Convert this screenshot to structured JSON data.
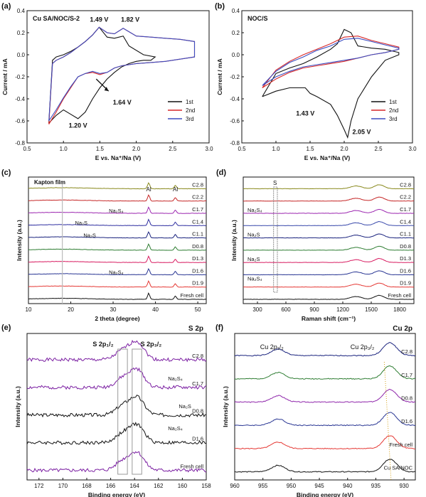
{
  "chart_data": [
    {
      "id": "a",
      "type": "line",
      "panel_label": "(a)",
      "title": "Cu SA/NOC/S-2",
      "xlabel": "E vs. Na⁺/Na (V)",
      "ylabel": "Current / mA",
      "xlim": [
        0.5,
        3.0
      ],
      "ylim": [
        -0.8,
        0.4
      ],
      "xticks": [
        "0.5",
        "1.0",
        "1.5",
        "2.0",
        "2.5",
        "3.0"
      ],
      "yticks": [
        "-0.8",
        "-0.6",
        "-0.4",
        "-0.2",
        "0.0",
        "0.2",
        "0.4"
      ],
      "legend": {
        "position": "bottom-right"
      },
      "annotations": [
        "1.49 V",
        "1.82 V",
        "1.64 V",
        "1.20 V"
      ],
      "series": [
        {
          "name": "1st",
          "color": "#111111",
          "x": [
            0.8,
            0.9,
            1.0,
            1.1,
            1.2,
            1.3,
            1.4,
            1.5,
            1.6,
            1.7,
            1.8,
            1.9,
            2.0,
            2.1,
            2.2,
            2.26,
            2.1,
            1.9,
            1.82,
            1.7,
            1.6,
            1.49,
            1.4,
            1.3,
            1.2,
            1.1,
            1.0,
            0.9,
            0.85,
            0.8
          ],
          "y": [
            -0.62,
            -0.55,
            -0.5,
            -0.54,
            -0.58,
            -0.52,
            -0.4,
            -0.3,
            -0.22,
            -0.16,
            -0.11,
            -0.08,
            -0.06,
            -0.05,
            -0.05,
            -0.02,
            0.0,
            0.08,
            0.17,
            0.15,
            0.16,
            0.25,
            0.18,
            0.12,
            0.07,
            0.03,
            0.0,
            -0.02,
            -0.05,
            -0.62
          ]
        },
        {
          "name": "2nd",
          "color": "#d62728",
          "x": [
            0.8,
            0.9,
            1.0,
            1.1,
            1.2,
            1.3,
            1.4,
            1.5,
            1.6,
            1.7,
            1.8,
            2.0,
            2.2,
            2.4,
            2.6,
            2.8,
            2.8,
            2.6,
            2.4,
            2.2,
            2.0,
            1.82,
            1.7,
            1.6,
            1.49,
            1.4,
            1.3,
            1.2,
            1.1,
            1.0,
            0.9,
            0.85,
            0.8
          ],
          "y": [
            -0.63,
            -0.52,
            -0.4,
            -0.3,
            -0.2,
            -0.17,
            -0.16,
            -0.18,
            -0.16,
            -0.12,
            -0.1,
            -0.08,
            -0.07,
            -0.06,
            -0.04,
            -0.02,
            0.12,
            0.14,
            0.15,
            0.16,
            0.17,
            0.24,
            0.19,
            0.2,
            0.25,
            0.18,
            0.12,
            0.07,
            0.02,
            -0.02,
            -0.05,
            -0.08,
            -0.63
          ]
        },
        {
          "name": "3rd",
          "color": "#3b4cc0",
          "x": [
            0.8,
            0.9,
            1.0,
            1.1,
            1.2,
            1.3,
            1.4,
            1.5,
            1.6,
            1.7,
            1.8,
            2.0,
            2.2,
            2.4,
            2.6,
            2.8,
            2.8,
            2.6,
            2.4,
            2.2,
            2.0,
            1.82,
            1.7,
            1.6,
            1.49,
            1.4,
            1.3,
            1.2,
            1.1,
            1.0,
            0.9,
            0.85,
            0.8
          ],
          "y": [
            -0.6,
            -0.5,
            -0.39,
            -0.29,
            -0.2,
            -0.17,
            -0.15,
            -0.17,
            -0.16,
            -0.12,
            -0.1,
            -0.08,
            -0.07,
            -0.06,
            -0.04,
            -0.02,
            0.12,
            0.14,
            0.15,
            0.16,
            0.17,
            0.24,
            0.19,
            0.2,
            0.25,
            0.18,
            0.12,
            0.07,
            0.02,
            -0.02,
            -0.05,
            -0.08,
            -0.6
          ]
        }
      ]
    },
    {
      "id": "b",
      "type": "line",
      "panel_label": "(b)",
      "title": "NOC/S",
      "xlabel": "E vs. Na⁺/Na (V)",
      "ylabel": "Current / mA",
      "xlim": [
        0.5,
        3.0
      ],
      "ylim": [
        -0.8,
        0.4
      ],
      "xticks": [
        "0.5",
        "1.0",
        "1.5",
        "2.0",
        "2.5",
        "3.0"
      ],
      "yticks": [
        "-0.8",
        "-0.6",
        "-0.4",
        "-0.2",
        "0.0",
        "0.2",
        "0.4"
      ],
      "legend": {
        "position": "bottom-right"
      },
      "annotations": [
        "1.43 V",
        "2.05 V"
      ],
      "series": [
        {
          "name": "1st",
          "color": "#111111",
          "x": [
            0.8,
            1.0,
            1.2,
            1.4,
            1.43,
            1.5,
            1.6,
            1.8,
            1.9,
            2.0,
            2.05,
            2.1,
            2.2,
            2.4,
            2.6,
            2.8,
            2.8,
            2.6,
            2.4,
            2.2,
            2.1,
            2.0,
            1.9,
            1.8,
            1.6,
            1.4,
            1.2,
            1.0,
            0.8
          ],
          "y": [
            -0.38,
            -0.33,
            -0.3,
            -0.3,
            -0.3,
            -0.35,
            -0.38,
            -0.45,
            -0.55,
            -0.68,
            -0.75,
            -0.6,
            -0.4,
            -0.2,
            -0.05,
            0.0,
            0.02,
            0.05,
            0.06,
            0.08,
            0.2,
            0.23,
            0.1,
            0.05,
            -0.02,
            -0.08,
            -0.12,
            -0.17,
            -0.38
          ]
        },
        {
          "name": "2nd",
          "color": "#d62728",
          "x": [
            0.8,
            1.0,
            1.2,
            1.4,
            1.6,
            1.8,
            2.0,
            2.2,
            2.4,
            2.6,
            2.8,
            2.8,
            2.6,
            2.4,
            2.2,
            2.0,
            1.8,
            1.6,
            1.4,
            1.2,
            1.0,
            0.8
          ],
          "y": [
            -0.3,
            -0.22,
            -0.16,
            -0.12,
            -0.1,
            -0.08,
            -0.06,
            -0.03,
            0.0,
            0.02,
            0.05,
            0.07,
            0.1,
            0.13,
            0.17,
            0.16,
            0.1,
            0.05,
            0.0,
            -0.06,
            -0.14,
            -0.3
          ]
        },
        {
          "name": "3rd",
          "color": "#3b4cc0",
          "x": [
            0.8,
            1.0,
            1.2,
            1.4,
            1.6,
            1.8,
            2.0,
            2.2,
            2.4,
            2.6,
            2.8,
            2.8,
            2.6,
            2.4,
            2.2,
            2.0,
            1.8,
            1.6,
            1.4,
            1.2,
            1.0,
            0.8
          ],
          "y": [
            -0.28,
            -0.2,
            -0.15,
            -0.11,
            -0.09,
            -0.07,
            -0.05,
            -0.03,
            0.0,
            0.02,
            0.05,
            0.06,
            0.09,
            0.12,
            0.15,
            0.14,
            0.08,
            0.04,
            -0.02,
            -0.07,
            -0.15,
            -0.28
          ]
        }
      ]
    },
    {
      "id": "c",
      "type": "line",
      "panel_label": "(c)",
      "xlabel": "2 theta (degree)",
      "ylabel": "Intensity (a.u.)",
      "xlim": [
        10,
        52
      ],
      "xticks": [
        "10",
        "20",
        "30",
        "40",
        "50"
      ],
      "annotations": [
        "Kapton film",
        "Al",
        "Al",
        "Na₂S₄",
        "Na₂S",
        "Na₂S",
        "Na₂S₄"
      ],
      "stack": [
        {
          "name": "C2.8",
          "color": "#8a8a1e"
        },
        {
          "name": "C2.2",
          "color": "#c62828"
        },
        {
          "name": "C1.7",
          "color": "#9c27b0"
        },
        {
          "name": "C1.4",
          "color": "#2e2ea0"
        },
        {
          "name": "C1.1",
          "color": "#1a237e"
        },
        {
          "name": "D0.8",
          "color": "#2e7d32"
        },
        {
          "name": "D1.3",
          "color": "#d81b60"
        },
        {
          "name": "D1.6",
          "color": "#283593"
        },
        {
          "name": "D1.9",
          "color": "#e53935"
        },
        {
          "name": "Fresh cell",
          "color": "#111111"
        }
      ],
      "peaks": [
        {
          "x": 38.4,
          "height": 1.0,
          "width": 0.25
        },
        {
          "x": 44.7,
          "height": 0.55,
          "width": 0.25
        }
      ],
      "hump": {
        "x": 18,
        "height": 0.4,
        "width": 6
      }
    },
    {
      "id": "d",
      "type": "line",
      "panel_label": "(d)",
      "xlabel": "Raman shift (cm⁻¹)",
      "ylabel": "Intensity (a.u.)",
      "xlim": [
        150,
        1950
      ],
      "xticks": [
        "300",
        "600",
        "900",
        "1200",
        "1500",
        "1800"
      ],
      "annotations": [
        "S",
        "Na₂S₄",
        "Na₂S",
        "Na₂S",
        "Na₂S₄"
      ],
      "stack": [
        {
          "name": "C2.8",
          "color": "#8a8a1e"
        },
        {
          "name": "C2.2",
          "color": "#c62828"
        },
        {
          "name": "C1.7",
          "color": "#9c27b0"
        },
        {
          "name": "C1.4",
          "color": "#3949ab"
        },
        {
          "name": "C1.1",
          "color": "#1a237e"
        },
        {
          "name": "D0.8",
          "color": "#2e7d32"
        },
        {
          "name": "D1.3",
          "color": "#d81b60"
        },
        {
          "name": "D1.6",
          "color": "#283593"
        },
        {
          "name": "D1.9",
          "color": "#e53935"
        },
        {
          "name": "Fresh cell",
          "color": "#111111"
        }
      ],
      "peaks": [
        {
          "x": 1340,
          "height": 0.45,
          "width": 60
        },
        {
          "x": 1585,
          "height": 0.65,
          "width": 50
        }
      ],
      "highlight_band": [
        470,
        510
      ]
    },
    {
      "id": "e",
      "type": "line",
      "panel_label": "(e)",
      "title": "S 2p",
      "xlabel": "Binding energy (eV)",
      "ylabel": "Intensity (a.u.)",
      "xlim": [
        173,
        158
      ],
      "xticks": [
        "172",
        "170",
        "168",
        "166",
        "164",
        "162",
        "160",
        "158"
      ],
      "annotations": [
        "S 2p₁/₂",
        "S 2p₃/₂",
        "Na₂S₄",
        "Na₂S",
        "Na₂S₄"
      ],
      "stack": [
        {
          "name": "C2.8",
          "color": "#7b1fa2"
        },
        {
          "name": "C1.7",
          "color": "#7b1fa2"
        },
        {
          "name": "D0.8",
          "color": "#111111"
        },
        {
          "name": "D1.6",
          "color": "#111111"
        },
        {
          "name": "Fresh cell",
          "color": "#7b1fa2"
        }
      ],
      "peaks": [
        {
          "x": 163.8,
          "height": 0.9,
          "width": 0.6
        },
        {
          "x": 165.0,
          "height": 0.45,
          "width": 0.6
        }
      ],
      "highlight_bands": [
        [
          165.4,
          164.6
        ],
        [
          164.2,
          163.4
        ]
      ]
    },
    {
      "id": "f",
      "type": "line",
      "panel_label": "(f)",
      "title": "Cu 2p",
      "xlabel": "Binding energy (eV)",
      "ylabel": "Intensity (a.u.)",
      "xlim": [
        960,
        928
      ],
      "xticks": [
        "960",
        "955",
        "950",
        "945",
        "940",
        "935",
        "930"
      ],
      "annotations": [
        "Cu 2p₁/₂",
        "Cu 2p₃/₂"
      ],
      "stack": [
        {
          "name": "C2.8",
          "color": "#1a237e"
        },
        {
          "name": "C1.7",
          "color": "#2e7d32"
        },
        {
          "name": "D0.8",
          "color": "#8e24aa"
        },
        {
          "name": "D1.6",
          "color": "#283593"
        },
        {
          "name": "Fresh cell",
          "color": "#e53935"
        },
        {
          "name": "Cu SA/NOC",
          "color": "#111111"
        }
      ],
      "peaks": [
        {
          "x": 932.5,
          "height": 1.0,
          "width": 1.2
        },
        {
          "x": 952.3,
          "height": 0.5,
          "width": 1.2
        }
      ]
    }
  ]
}
